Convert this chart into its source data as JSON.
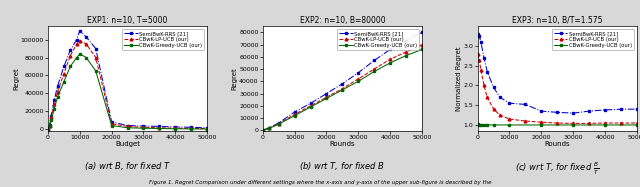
{
  "exp1": {
    "title": "EXP1: n=10, T=5000",
    "xlabel": "Budget",
    "ylabel": "Regret",
    "xlim": [
      0,
      50000
    ],
    "ylim": [
      -2000,
      115000
    ],
    "yticks": [
      0,
      20000,
      40000,
      60000,
      80000,
      100000
    ],
    "xticks": [
      0,
      10000,
      20000,
      30000,
      40000,
      50000
    ],
    "caption": "(a) wrt $B$, for fixed $T$",
    "series": {
      "semibwk": {
        "label": "SemiBwK-RRS [21]",
        "color": "#0000cc",
        "linestyle": "-.",
        "marker": "s",
        "x": [
          0,
          500,
          1000,
          2000,
          3000,
          5000,
          7000,
          9000,
          10000,
          12000,
          15000,
          20000,
          25000,
          30000,
          35000,
          40000,
          45000,
          50000
        ],
        "y": [
          0,
          5000,
          15000,
          33000,
          48000,
          70000,
          88000,
          100000,
          110000,
          103000,
          90000,
          8000,
          4000,
          3500,
          3000,
          2500,
          2000,
          1500
        ]
      },
      "cbwklp": {
        "label": "CBwK-LP-UCB (our)",
        "color": "#cc0000",
        "linestyle": "--",
        "marker": "^",
        "x": [
          0,
          500,
          1000,
          2000,
          3000,
          5000,
          7000,
          9000,
          10000,
          12000,
          15000,
          20000,
          25000,
          30000,
          35000,
          40000,
          45000,
          50000
        ],
        "y": [
          0,
          4000,
          13000,
          28000,
          42000,
          62000,
          82000,
          95000,
          99000,
          95000,
          80000,
          6000,
          3000,
          2000,
          1500,
          1000,
          800,
          600
        ]
      },
      "cbwkgreedy": {
        "label": "CBwK-Greedy-UCB (our)",
        "color": "#006600",
        "linestyle": "-",
        "marker": "s",
        "x": [
          0,
          500,
          1000,
          2000,
          3000,
          5000,
          7000,
          9000,
          10000,
          12000,
          15000,
          20000,
          25000,
          30000,
          35000,
          40000,
          45000,
          50000
        ],
        "y": [
          0,
          3000,
          10000,
          23000,
          36000,
          53000,
          70000,
          80000,
          84000,
          80000,
          65000,
          4000,
          1500,
          1000,
          700,
          400,
          200,
          100
        ]
      }
    }
  },
  "exp2": {
    "title": "EXP2: n=10, B=80000",
    "xlabel": "Rounds",
    "ylabel": "Regret",
    "xlim": [
      0,
      50000
    ],
    "ylim": [
      -500,
      85000
    ],
    "yticks": [
      0,
      10000,
      20000,
      30000,
      40000,
      50000,
      60000,
      70000,
      80000
    ],
    "xticks": [
      0,
      10000,
      20000,
      30000,
      40000,
      50000
    ],
    "caption": "(b) wrt $T$, for fixed $B$",
    "series": {
      "semibwk": {
        "label": "SemiBwK-RRS [21]",
        "color": "#0000cc",
        "linestyle": "-.",
        "marker": "s",
        "x": [
          0,
          2000,
          5000,
          10000,
          15000,
          20000,
          25000,
          30000,
          35000,
          40000,
          45000,
          50000
        ],
        "y": [
          0,
          2000,
          6000,
          15000,
          22000,
          30000,
          38000,
          47000,
          57000,
          66000,
          73000,
          80000
        ]
      },
      "cbwklp": {
        "label": "CBwK-LP-UCB (our)",
        "color": "#cc0000",
        "linestyle": "--",
        "marker": "^",
        "x": [
          0,
          2000,
          5000,
          10000,
          15000,
          20000,
          25000,
          30000,
          35000,
          40000,
          45000,
          50000
        ],
        "y": [
          0,
          1800,
          5500,
          13000,
          20000,
          27000,
          34000,
          42000,
          50000,
          58000,
          64000,
          70000
        ]
      },
      "cbwkgreedy": {
        "label": "CBwK-Greedy-UCB (our)",
        "color": "#006600",
        "linestyle": "-",
        "marker": "s",
        "x": [
          0,
          2000,
          5000,
          10000,
          15000,
          20000,
          25000,
          30000,
          35000,
          40000,
          45000,
          50000
        ],
        "y": [
          0,
          1500,
          5000,
          12000,
          19000,
          26000,
          33000,
          40000,
          48000,
          55000,
          61000,
          66000
        ]
      }
    }
  },
  "exp3": {
    "title": "EXP3: n=10, B/T=1.575",
    "xlabel": "Rounds",
    "ylabel": "Normalized Regret",
    "xlim": [
      0,
      50000
    ],
    "ylim": [
      0.85,
      3.5
    ],
    "yticks": [
      1.0,
      1.5,
      2.0,
      2.5,
      3.0
    ],
    "xticks": [
      0,
      10000,
      20000,
      30000,
      40000,
      50000
    ],
    "caption": "(c) wrt $T$, for fixed $\\frac{B}{T}$",
    "series": {
      "semibwk": {
        "label": "SemiBwK-RRS [21]",
        "color": "#0000cc",
        "linestyle": "-.",
        "marker": "s",
        "x": [
          100,
          500,
          1000,
          2000,
          3000,
          5000,
          7000,
          10000,
          15000,
          20000,
          25000,
          30000,
          35000,
          40000,
          45000,
          50000
        ],
        "y": [
          3.3,
          3.25,
          3.1,
          2.7,
          2.35,
          1.95,
          1.7,
          1.55,
          1.52,
          1.35,
          1.32,
          1.3,
          1.35,
          1.38,
          1.4,
          1.4
        ]
      },
      "cbwklp": {
        "label": "CBwK-LP-UCB (our)",
        "color": "#cc0000",
        "linestyle": "--",
        "marker": "^",
        "x": [
          100,
          500,
          1000,
          2000,
          3000,
          5000,
          7000,
          10000,
          15000,
          20000,
          25000,
          30000,
          35000,
          40000,
          45000,
          50000
        ],
        "y": [
          2.8,
          2.65,
          2.4,
          2.0,
          1.7,
          1.4,
          1.25,
          1.15,
          1.1,
          1.07,
          1.05,
          1.04,
          1.04,
          1.05,
          1.05,
          1.05
        ]
      },
      "cbwkgreedy": {
        "label": "CBwK-Greedy-UCB (our)",
        "color": "#006600",
        "linestyle": "-",
        "marker": "s",
        "x": [
          100,
          500,
          1000,
          2000,
          3000,
          5000,
          10000,
          20000,
          30000,
          40000,
          50000
        ],
        "y": [
          1.02,
          1.01,
          1.005,
          1.003,
          1.002,
          1.001,
          1.0,
          1.0,
          1.0,
          1.0,
          1.0
        ]
      }
    }
  },
  "figure_caption": "Figure 1. Regret Comparison under different settings where the x-axis and y-axis of the upper sub-figure is described by the",
  "background_color": "#d8d8d8",
  "plot_bg_color": "#ffffff"
}
